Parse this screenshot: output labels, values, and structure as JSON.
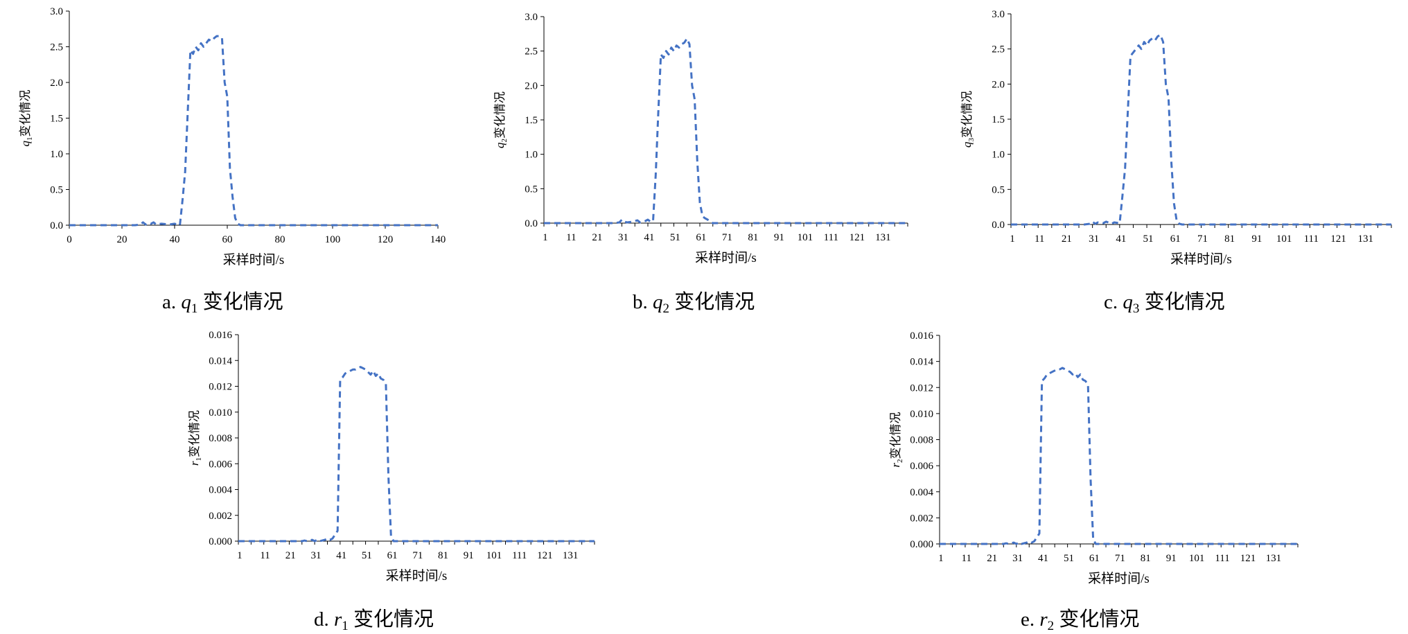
{
  "line_color": "#4472C4",
  "chart_data": [
    {
      "type": "line",
      "panel": "a",
      "caption_prefix": "a.",
      "caption_var": "q",
      "caption_sub": "1",
      "caption_text": "变化情况",
      "ylabel_var": "q",
      "ylabel_sub": "1",
      "ylabel_text": "变化情况",
      "xlabel": "采样时间/s",
      "xaxis": "numeric",
      "xlim": [
        0,
        140
      ],
      "xticks": [
        "0",
        "20",
        "40",
        "60",
        "80",
        "100",
        "120",
        "140"
      ],
      "xtick_values": [
        0,
        20,
        40,
        60,
        80,
        100,
        120,
        140
      ],
      "ylim": [
        0,
        3.0
      ],
      "yticks": [
        "0.0",
        "0.5",
        "1.0",
        "1.5",
        "2.0",
        "2.5",
        "3.0"
      ],
      "series": [
        {
          "x": [
            0,
            5,
            10,
            15,
            20,
            25,
            27,
            28,
            29,
            30,
            31,
            32,
            33,
            35,
            38,
            40,
            42,
            43,
            44,
            45,
            46,
            47,
            48,
            49,
            50,
            51,
            52,
            53,
            54,
            55,
            56,
            57,
            58,
            59,
            60,
            61,
            62,
            63,
            64,
            65,
            70,
            80,
            90,
            100,
            110,
            120,
            130,
            140
          ],
          "values": [
            0,
            0,
            0,
            0,
            0,
            0,
            0.01,
            0.04,
            0.01,
            0.03,
            0.02,
            0.04,
            0.01,
            0.02,
            0.01,
            0.02,
            0,
            0.35,
            0.75,
            1.6,
            2.45,
            2.4,
            2.5,
            2.45,
            2.55,
            2.5,
            2.55,
            2.6,
            2.58,
            2.62,
            2.65,
            2.65,
            2.62,
            2.0,
            1.8,
            0.8,
            0.4,
            0.1,
            0.02,
            0,
            0,
            0,
            0,
            0,
            0,
            0,
            0,
            0
          ]
        }
      ]
    },
    {
      "type": "line",
      "panel": "b",
      "caption_prefix": "b.",
      "caption_var": "q",
      "caption_sub": "2",
      "caption_text": "变化情况",
      "ylabel_var": "q",
      "ylabel_sub": "2",
      "ylabel_text": "变化情况",
      "xlabel": "采样时间/s",
      "xaxis": "category",
      "xlim": [
        1,
        141
      ],
      "xticks": [
        "1",
        "11",
        "21",
        "31",
        "41",
        "51",
        "61",
        "71",
        "81",
        "91",
        "101",
        "111",
        "121",
        "131"
      ],
      "ylim": [
        0,
        3.0
      ],
      "yticks": [
        "0.0",
        "0.5",
        "1.0",
        "1.5",
        "2.0",
        "2.5",
        "3.0"
      ],
      "series": [
        {
          "x": [
            1,
            10,
            20,
            28,
            30,
            31,
            32,
            33,
            35,
            37,
            38,
            40,
            41,
            42,
            43,
            44,
            45,
            46,
            47,
            48,
            49,
            50,
            51,
            52,
            53,
            54,
            55,
            56,
            57,
            58,
            59,
            60,
            61,
            62,
            63,
            64,
            65,
            66,
            67,
            68,
            70,
            80,
            90,
            100,
            110,
            120,
            130,
            141
          ],
          "values": [
            0,
            0,
            0,
            0,
            0.01,
            0.05,
            0.02,
            0.01,
            0.02,
            0.04,
            0.01,
            0.03,
            0.05,
            0.02,
            0.03,
            0.7,
            1.6,
            2.45,
            2.4,
            2.5,
            2.45,
            2.55,
            2.5,
            2.58,
            2.55,
            2.6,
            2.62,
            2.68,
            2.6,
            2.0,
            1.8,
            0.9,
            0.3,
            0.1,
            0.07,
            0.05,
            0.02,
            0,
            0,
            0,
            0,
            0,
            0,
            0,
            0,
            0,
            0,
            0
          ]
        }
      ]
    },
    {
      "type": "line",
      "panel": "c",
      "caption_prefix": "c.",
      "caption_var": "q",
      "caption_sub": "3",
      "caption_text": "变化情况",
      "ylabel_var": "q",
      "ylabel_sub": "3",
      "ylabel_text": "变化情况",
      "xlabel": "采样时间/s",
      "xaxis": "category",
      "xlim": [
        1,
        141
      ],
      "xticks": [
        "1",
        "11",
        "21",
        "31",
        "41",
        "51",
        "61",
        "71",
        "81",
        "91",
        "101",
        "111",
        "121",
        "131"
      ],
      "ylim": [
        0,
        3.0
      ],
      "yticks": [
        "0.0",
        "0.5",
        "1.0",
        "1.5",
        "2.0",
        "2.5",
        "3.0"
      ],
      "series": [
        {
          "x": [
            1,
            10,
            20,
            28,
            30,
            31,
            32,
            33,
            35,
            36,
            38,
            39,
            41,
            42,
            43,
            44,
            45,
            46,
            47,
            48,
            49,
            50,
            51,
            52,
            53,
            54,
            55,
            56,
            57,
            58,
            59,
            60,
            61,
            62,
            63,
            64,
            70,
            80,
            90,
            100,
            110,
            120,
            130,
            141
          ],
          "values": [
            0,
            0,
            0,
            0,
            0.01,
            0.04,
            0.01,
            0.03,
            0.02,
            0.04,
            0.01,
            0.03,
            0.02,
            0.4,
            0.8,
            1.6,
            2.4,
            2.45,
            2.5,
            2.55,
            2.5,
            2.6,
            2.55,
            2.62,
            2.65,
            2.62,
            2.68,
            2.7,
            2.6,
            2.0,
            1.8,
            0.9,
            0.3,
            0.05,
            0.01,
            0,
            0,
            0,
            0,
            0,
            0,
            0,
            0,
            0
          ]
        }
      ]
    },
    {
      "type": "line",
      "panel": "d",
      "caption_prefix": "d.",
      "caption_var": "r",
      "caption_sub": "1",
      "caption_text": "变化情况",
      "ylabel_var": "r",
      "ylabel_sub": "1",
      "ylabel_text": "变化情况",
      "xlabel": "采样时间/s",
      "xaxis": "category",
      "xlim": [
        1,
        141
      ],
      "xticks": [
        "1",
        "11",
        "21",
        "31",
        "41",
        "51",
        "61",
        "71",
        "81",
        "91",
        "101",
        "111",
        "121",
        "131"
      ],
      "ylim": [
        0,
        0.016
      ],
      "yticks": [
        "0.000",
        "0.002",
        "0.004",
        "0.006",
        "0.008",
        "0.010",
        "0.012",
        "0.014",
        "0.016"
      ],
      "series": [
        {
          "x": [
            1,
            10,
            20,
            26,
            27,
            28,
            30,
            31,
            32,
            33,
            35,
            36,
            37,
            38,
            39,
            40,
            41,
            42,
            43,
            44,
            45,
            46,
            47,
            48,
            49,
            50,
            51,
            52,
            53,
            54,
            55,
            56,
            57,
            58,
            59,
            60,
            61,
            62,
            63,
            64,
            70,
            80,
            90,
            100,
            110,
            120,
            130,
            141
          ],
          "values": [
            0,
            0,
            0,
            0,
            5e-05,
            0,
            0.0001,
            0,
            0.0001,
            0,
            0.0001,
            0.0002,
            0.0001,
            0.0002,
            0.0005,
            0.0008,
            0.0125,
            0.0127,
            0.013,
            0.0131,
            0.0132,
            0.0133,
            0.0133,
            0.0134,
            0.0135,
            0.0134,
            0.0133,
            0.0131,
            0.0129,
            0.0132,
            0.0128,
            0.013,
            0.0126,
            0.0125,
            0.0122,
            0.005,
            0.0004,
            0,
            0,
            0,
            0,
            0,
            0,
            0,
            0,
            0,
            0,
            0
          ]
        }
      ]
    },
    {
      "type": "line",
      "panel": "e",
      "caption_prefix": "e.",
      "caption_var": "r",
      "caption_sub": "2",
      "caption_text": "变化情况",
      "ylabel_var": "r",
      "ylabel_sub": "2",
      "ylabel_text": "变化情况",
      "xlabel": "采样时间/s",
      "xaxis": "category",
      "xlim": [
        1,
        141
      ],
      "xticks": [
        "1",
        "11",
        "21",
        "31",
        "41",
        "51",
        "61",
        "71",
        "81",
        "91",
        "101",
        "111",
        "121",
        "131"
      ],
      "ylim": [
        0,
        0.016
      ],
      "yticks": [
        "0.000",
        "0.002",
        "0.004",
        "0.006",
        "0.008",
        "0.010",
        "0.012",
        "0.014",
        "0.016"
      ],
      "series": [
        {
          "x": [
            1,
            10,
            20,
            26,
            27,
            28,
            30,
            31,
            32,
            33,
            35,
            36,
            37,
            38,
            39,
            40,
            41,
            42,
            43,
            44,
            45,
            46,
            47,
            48,
            49,
            50,
            51,
            52,
            53,
            54,
            55,
            56,
            57,
            58,
            59,
            60,
            61,
            62,
            63,
            64,
            70,
            80,
            90,
            100,
            110,
            120,
            130,
            141
          ],
          "values": [
            0,
            0,
            0,
            0,
            5e-05,
            0,
            0.0001,
            0,
            0.0001,
            0,
            0.0001,
            0.0002,
            0.0001,
            0.0002,
            0.0005,
            0.0008,
            0.0125,
            0.0127,
            0.013,
            0.0131,
            0.0132,
            0.0133,
            0.0134,
            0.0134,
            0.0135,
            0.0134,
            0.0133,
            0.0132,
            0.013,
            0.0131,
            0.0128,
            0.013,
            0.0126,
            0.0125,
            0.0122,
            0.005,
            0.0004,
            0,
            0,
            0,
            0,
            0,
            0,
            0,
            0,
            0,
            0,
            0
          ]
        }
      ]
    }
  ]
}
